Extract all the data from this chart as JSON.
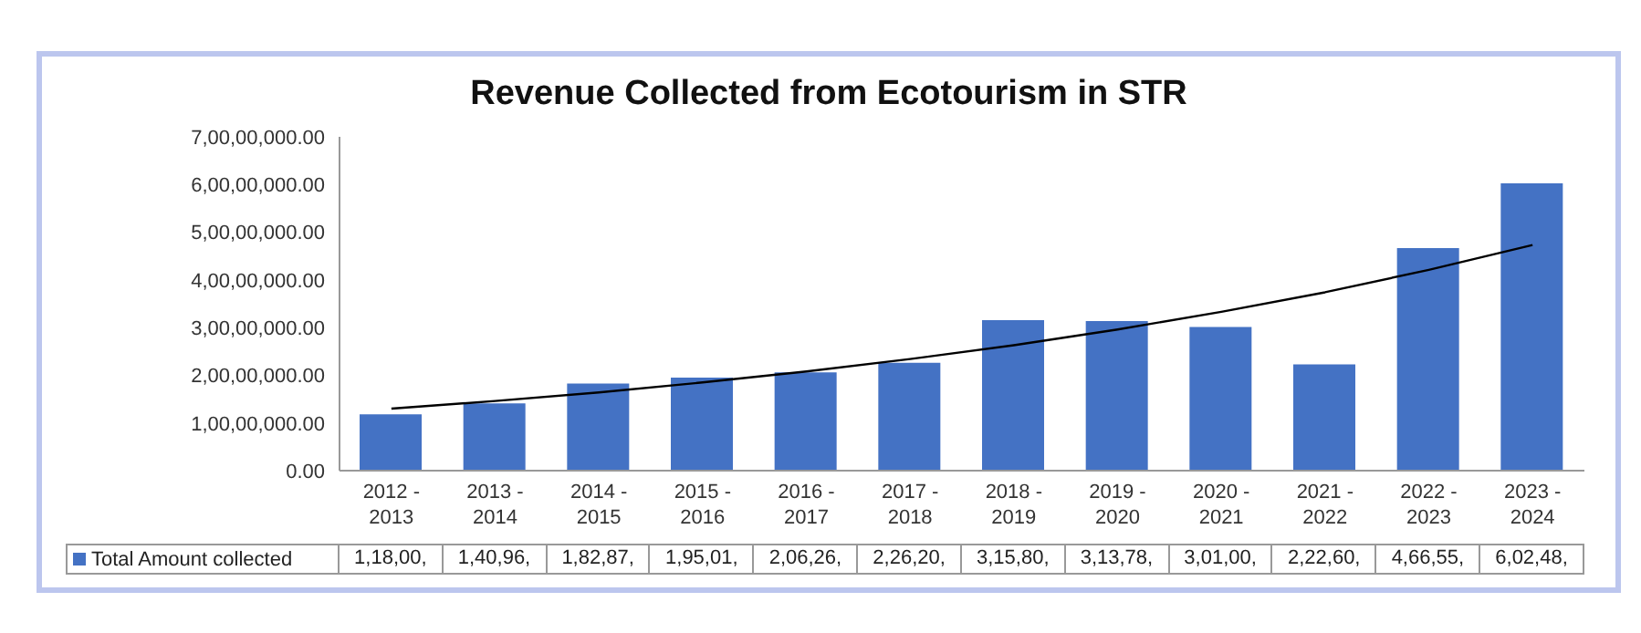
{
  "chart_data": {
    "type": "bar",
    "title": "Revenue Collected from Ecotourism in STR",
    "categories": [
      "2012 - 2013",
      "2013 - 2014",
      "2014 - 2015",
      "2015 - 2016",
      "2016 - 2017",
      "2017 - 2018",
      "2018 - 2019",
      "2019 - 2020",
      "2020 - 2021",
      "2021 - 2022",
      "2022 - 2023",
      "2023 - 2024"
    ],
    "series": [
      {
        "name": "Total Amount collected",
        "color": "#4472c4",
        "values": [
          11800000,
          14096000,
          18287000,
          19501000,
          20626000,
          22620000,
          31580000,
          31378000,
          30100000,
          22260000,
          46655000,
          60248000
        ],
        "value_labels": [
          "1,18,00,",
          "1,40,96,",
          "1,82,87,",
          "1,95,01,",
          "2,06,26,",
          "2,26,20,",
          "3,15,80,",
          "3,13,78,",
          "3,01,00,",
          "2,22,60,",
          "4,66,55,",
          "6,02,48,"
        ]
      },
      {
        "type": "line",
        "color": "#000000",
        "marker": "none",
        "values": [
          13000000,
          14600000,
          16400000,
          18500000,
          20800000,
          23400000,
          26300000,
          29600000,
          33300000,
          37400000,
          42100000,
          47300000
        ]
      }
    ],
    "ylim": [
      0,
      70000000
    ],
    "yticks": [
      {
        "value": 0,
        "label": "0.00"
      },
      {
        "value": 10000000,
        "label": "1,00,00,000.00"
      },
      {
        "value": 20000000,
        "label": "2,00,00,000.00"
      },
      {
        "value": 30000000,
        "label": "3,00,00,000.00"
      },
      {
        "value": 40000000,
        "label": "4,00,00,000.00"
      },
      {
        "value": 50000000,
        "label": "5,00,00,000.00"
      },
      {
        "value": 60000000,
        "label": "6,00,00,000.00"
      },
      {
        "value": 70000000,
        "label": "7,00,00,000.00"
      }
    ],
    "legend": "bottom"
  }
}
